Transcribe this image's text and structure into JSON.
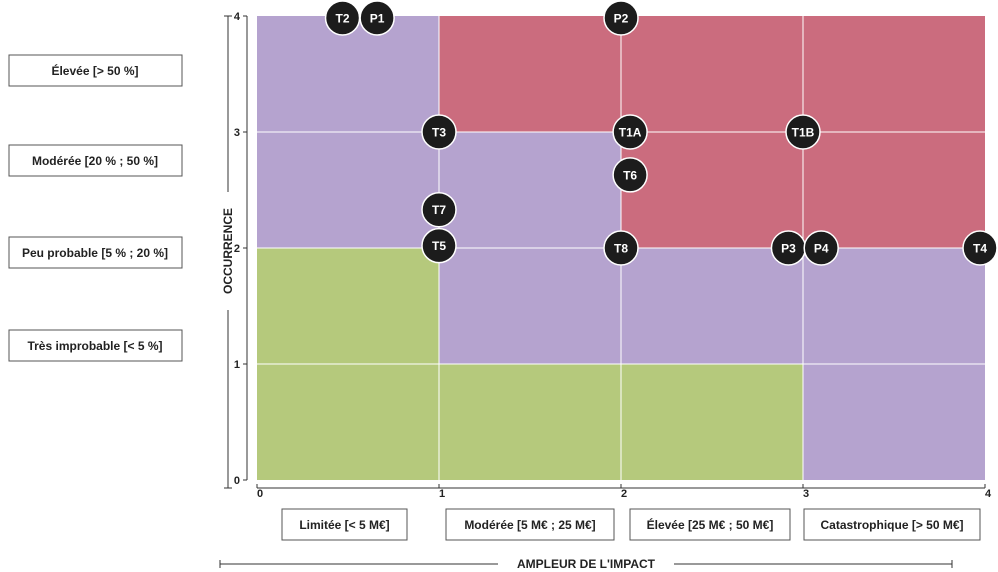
{
  "chart_data": {
    "type": "heatmap",
    "title": "",
    "xlabel": "AMPLEUR DE L'IMPACT",
    "ylabel": "OCCURRENCE",
    "xlim": [
      0,
      4
    ],
    "ylim": [
      0,
      4
    ],
    "x_ticks": [
      "0",
      "1",
      "2",
      "3",
      "4"
    ],
    "y_ticks": [
      "0",
      "1",
      "2",
      "3",
      "4"
    ],
    "grid": true,
    "colors": {
      "green": "#b5c97c",
      "purple": "#b5a3cf",
      "red": "#cb6c7e",
      "marker": "#1c1c1c"
    },
    "x_categories": [
      "Limitée [< 5 M€]",
      "Modérée [5 M€ ; 25 M€]",
      "Élevée [25 M€ ; 50 M€]",
      "Catastrophique [> 50 M€]"
    ],
    "y_categories": [
      "Élevée [> 50 %]",
      "Modérée [20 % ; 50 %]",
      "Peu probable [5 % ; 20 %]",
      "Très improbable [< 5 %]"
    ],
    "zones": [
      {
        "x": [
          0,
          1
        ],
        "y": [
          3,
          4
        ],
        "level": "purple"
      },
      {
        "x": [
          1,
          4
        ],
        "y": [
          3,
          4
        ],
        "level": "red"
      },
      {
        "x": [
          0,
          2
        ],
        "y": [
          2,
          3
        ],
        "level": "purple"
      },
      {
        "x": [
          2,
          4
        ],
        "y": [
          2,
          3
        ],
        "level": "red"
      },
      {
        "x": [
          0,
          1
        ],
        "y": [
          1,
          2
        ],
        "level": "green"
      },
      {
        "x": [
          1,
          4
        ],
        "y": [
          1,
          2
        ],
        "level": "purple"
      },
      {
        "x": [
          0,
          3
        ],
        "y": [
          0,
          1
        ],
        "level": "green"
      },
      {
        "x": [
          3,
          4
        ],
        "y": [
          0,
          1
        ],
        "level": "purple"
      }
    ],
    "points": [
      {
        "label": "T2",
        "x": 0.47,
        "y": 4.0
      },
      {
        "label": "P1",
        "x": 0.66,
        "y": 4.0
      },
      {
        "label": "P2",
        "x": 2.0,
        "y": 4.0
      },
      {
        "label": "T3",
        "x": 1.0,
        "y": 3.0
      },
      {
        "label": "T1A",
        "x": 2.05,
        "y": 3.0
      },
      {
        "label": "T1B",
        "x": 3.0,
        "y": 3.0
      },
      {
        "label": "T6",
        "x": 2.05,
        "y": 2.63
      },
      {
        "label": "T7",
        "x": 1.0,
        "y": 2.33
      },
      {
        "label": "T5",
        "x": 1.0,
        "y": 2.02
      },
      {
        "label": "T8",
        "x": 2.0,
        "y": 2.0
      },
      {
        "label": "P3",
        "x": 2.92,
        "y": 2.0
      },
      {
        "label": "P4",
        "x": 3.1,
        "y": 2.0
      },
      {
        "label": "T4",
        "x": 4.0,
        "y": 2.0
      }
    ]
  }
}
